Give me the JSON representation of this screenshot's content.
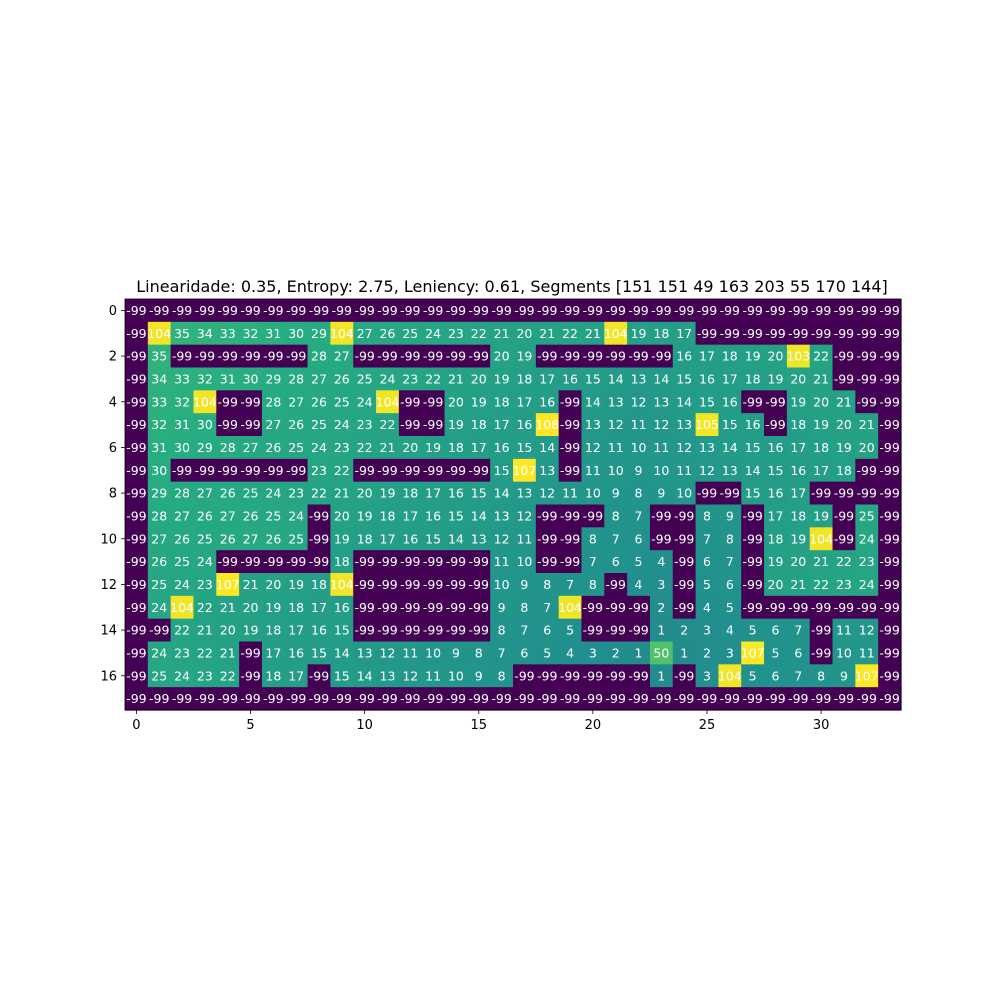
{
  "chart_data": {
    "type": "heatmap",
    "title": "Linearidade: 0.35, Entropy: 2.75, Leniency: 0.61, Segments [151 151  49 163 203  55 170 144]",
    "xlabel": "",
    "ylabel": "",
    "colormap": "viridis",
    "vmin": -99,
    "vmax": 108,
    "x_ticks": [
      0,
      5,
      10,
      15,
      20,
      25,
      30
    ],
    "y_ticks": [
      0,
      2,
      4,
      6,
      8,
      10,
      12,
      14,
      16
    ],
    "grid": false,
    "rows": [
      [
        -99,
        -99,
        -99,
        -99,
        -99,
        -99,
        -99,
        -99,
        -99,
        -99,
        -99,
        -99,
        -99,
        -99,
        -99,
        -99,
        -99,
        -99,
        -99,
        -99,
        -99,
        -99,
        -99,
        -99,
        -99,
        -99,
        -99,
        -99,
        -99,
        -99,
        -99,
        -99,
        -99,
        -99
      ],
      [
        -99,
        104,
        35,
        34,
        33,
        32,
        31,
        30,
        29,
        104,
        27,
        26,
        25,
        24,
        23,
        22,
        21,
        20,
        21,
        22,
        21,
        104,
        19,
        18,
        17,
        -99,
        -99,
        -99,
        -99,
        -99,
        -99,
        -99,
        -99,
        -99
      ],
      [
        -99,
        35,
        -99,
        -99,
        -99,
        -99,
        -99,
        -99,
        28,
        27,
        -99,
        -99,
        -99,
        -99,
        -99,
        -99,
        20,
        19,
        -99,
        -99,
        -99,
        -99,
        -99,
        -99,
        16,
        17,
        18,
        19,
        20,
        103,
        22,
        -99,
        -99,
        -99
      ],
      [
        -99,
        34,
        33,
        32,
        31,
        30,
        29,
        28,
        27,
        26,
        25,
        24,
        23,
        22,
        21,
        20,
        19,
        18,
        17,
        16,
        15,
        14,
        13,
        14,
        15,
        16,
        17,
        18,
        19,
        20,
        21,
        -99,
        -99,
        -99
      ],
      [
        -99,
        33,
        32,
        104,
        -99,
        -99,
        28,
        27,
        26,
        25,
        24,
        104,
        -99,
        -99,
        20,
        19,
        18,
        17,
        16,
        -99,
        14,
        13,
        12,
        13,
        14,
        15,
        16,
        -99,
        -99,
        19,
        20,
        21,
        -99,
        -99
      ],
      [
        -99,
        32,
        31,
        30,
        -99,
        -99,
        27,
        26,
        25,
        24,
        23,
        22,
        -99,
        -99,
        19,
        18,
        17,
        16,
        108,
        -99,
        13,
        12,
        11,
        12,
        13,
        105,
        15,
        16,
        -99,
        18,
        19,
        20,
        21,
        -99
      ],
      [
        -99,
        31,
        30,
        29,
        28,
        27,
        26,
        25,
        24,
        23,
        22,
        21,
        20,
        19,
        18,
        17,
        16,
        15,
        14,
        -99,
        12,
        11,
        10,
        11,
        12,
        13,
        14,
        15,
        16,
        17,
        18,
        19,
        20,
        -99
      ],
      [
        -99,
        30,
        -99,
        -99,
        -99,
        -99,
        -99,
        -99,
        23,
        22,
        -99,
        -99,
        -99,
        -99,
        -99,
        -99,
        15,
        107,
        13,
        -99,
        11,
        10,
        9,
        10,
        11,
        12,
        13,
        14,
        15,
        16,
        17,
        18,
        -99,
        -99
      ],
      [
        -99,
        29,
        28,
        27,
        26,
        25,
        24,
        23,
        22,
        21,
        20,
        19,
        18,
        17,
        16,
        15,
        14,
        13,
        12,
        11,
        10,
        9,
        8,
        9,
        10,
        -99,
        -99,
        15,
        16,
        17,
        -99,
        -99,
        -99,
        -99
      ],
      [
        -99,
        28,
        27,
        26,
        27,
        26,
        25,
        24,
        -99,
        20,
        19,
        18,
        17,
        16,
        15,
        14,
        13,
        12,
        -99,
        -99,
        -99,
        8,
        7,
        -99,
        -99,
        8,
        9,
        -99,
        17,
        18,
        19,
        -99,
        25,
        -99
      ],
      [
        -99,
        27,
        26,
        25,
        26,
        27,
        26,
        25,
        -99,
        19,
        18,
        17,
        16,
        15,
        14,
        13,
        12,
        11,
        -99,
        -99,
        8,
        7,
        6,
        -99,
        -99,
        7,
        8,
        -99,
        18,
        19,
        104,
        -99,
        24,
        -99
      ],
      [
        -99,
        26,
        25,
        24,
        -99,
        -99,
        -99,
        -99,
        -99,
        18,
        -99,
        -99,
        -99,
        -99,
        -99,
        -99,
        11,
        10,
        -99,
        -99,
        7,
        6,
        5,
        4,
        -99,
        6,
        7,
        -99,
        19,
        20,
        21,
        22,
        23,
        -99
      ],
      [
        -99,
        25,
        24,
        23,
        107,
        21,
        20,
        19,
        18,
        104,
        -99,
        -99,
        -99,
        -99,
        -99,
        -99,
        10,
        9,
        8,
        7,
        8,
        -99,
        4,
        3,
        -99,
        5,
        6,
        -99,
        20,
        21,
        22,
        23,
        24,
        -99
      ],
      [
        -99,
        24,
        104,
        22,
        21,
        20,
        19,
        18,
        17,
        16,
        -99,
        -99,
        -99,
        -99,
        -99,
        -99,
        9,
        8,
        7,
        104,
        -99,
        -99,
        -99,
        2,
        -99,
        4,
        5,
        -99,
        -99,
        -99,
        -99,
        -99,
        -99,
        -99
      ],
      [
        -99,
        -99,
        22,
        21,
        20,
        19,
        18,
        17,
        16,
        15,
        -99,
        -99,
        -99,
        -99,
        -99,
        -99,
        8,
        7,
        6,
        5,
        -99,
        -99,
        -99,
        1,
        2,
        3,
        4,
        5,
        6,
        7,
        -99,
        11,
        12,
        -99
      ],
      [
        -99,
        24,
        23,
        22,
        21,
        -99,
        17,
        16,
        15,
        14,
        13,
        12,
        11,
        10,
        9,
        8,
        7,
        6,
        5,
        4,
        3,
        2,
        1,
        50,
        1,
        2,
        3,
        107,
        5,
        6,
        -99,
        10,
        11,
        -99
      ],
      [
        -99,
        25,
        24,
        23,
        22,
        -99,
        18,
        17,
        -99,
        15,
        14,
        13,
        12,
        11,
        10,
        9,
        8,
        -99,
        -99,
        -99,
        -99,
        -99,
        -99,
        1,
        -99,
        3,
        104,
        5,
        6,
        7,
        8,
        9,
        107,
        -99
      ],
      [
        -99,
        -99,
        -99,
        -99,
        -99,
        -99,
        -99,
        -99,
        -99,
        -99,
        -99,
        -99,
        -99,
        -99,
        -99,
        -99,
        -99,
        -99,
        -99,
        -99,
        -99,
        -99,
        -99,
        -99,
        -99,
        -99,
        -99,
        -99,
        -99,
        -99,
        -99,
        -99,
        -99,
        -99
      ]
    ]
  }
}
